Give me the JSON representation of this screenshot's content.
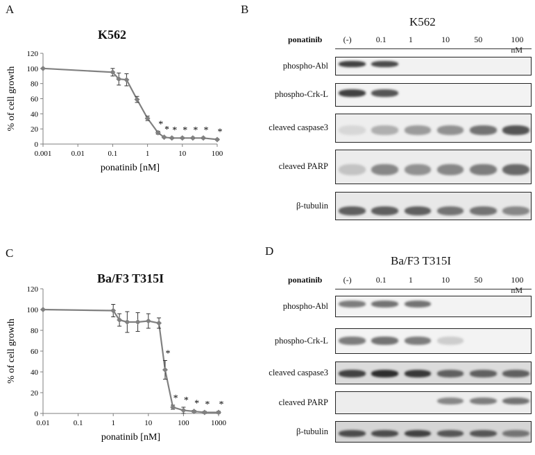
{
  "panels": {
    "A": {
      "label": "A",
      "title": "K562"
    },
    "B": {
      "label": "B",
      "title": "K562"
    },
    "C": {
      "label": "C",
      "title": "Ba/F3 T315I"
    },
    "D": {
      "label": "D",
      "title": "Ba/F3 T315I"
    }
  },
  "chart_data": [
    {
      "type": "line",
      "title": "K562",
      "xlabel": "ponatinib [nM]",
      "ylabel": "% of cell growth",
      "xscale": "log",
      "xlim": [
        0.001,
        100
      ],
      "ylim": [
        0,
        120
      ],
      "xticks": [
        "0.001",
        "0.01",
        "0.1",
        "1",
        "10",
        "100"
      ],
      "yticks": [
        "0",
        "20",
        "40",
        "60",
        "80",
        "100",
        "120"
      ],
      "grid": false,
      "color": "#808080",
      "x": [
        0.001,
        0.1,
        0.15,
        0.25,
        0.5,
        1,
        2,
        3,
        5,
        10,
        20,
        40,
        100
      ],
      "y": [
        100,
        95,
        86,
        85,
        59,
        34,
        15,
        9,
        8,
        8,
        8,
        8,
        6
      ],
      "error": [
        0,
        5,
        8,
        8,
        4,
        3,
        2,
        1,
        1,
        1,
        1,
        1,
        1
      ],
      "significant": [
        "*",
        "*",
        "*",
        "*",
        "*",
        "*",
        "*"
      ]
    },
    {
      "type": "line",
      "title": "Ba/F3 T315I",
      "xlabel": "ponatinib [nM]",
      "ylabel": "% of cell growth",
      "xscale": "log",
      "xlim": [
        0.01,
        1000
      ],
      "ylim": [
        0,
        120
      ],
      "xticks": [
        "0.01",
        "0.1",
        "1",
        "10",
        "100",
        "1000"
      ],
      "yticks": [
        "0",
        "20",
        "40",
        "60",
        "80",
        "100",
        "120"
      ],
      "grid": false,
      "color": "#808080",
      "x": [
        0.01,
        1,
        1.5,
        2.5,
        5,
        10,
        20,
        30,
        50,
        100,
        200,
        400,
        1000
      ],
      "y": [
        100,
        99,
        90,
        88,
        88,
        89,
        87,
        42,
        6,
        3,
        2,
        1,
        1
      ],
      "error": [
        0,
        6,
        6,
        10,
        9,
        7,
        5,
        9,
        2,
        3,
        1,
        1,
        1
      ],
      "significant": [
        "*",
        "*",
        "*",
        "*",
        "*",
        "*"
      ]
    }
  ],
  "blotB": {
    "header_label": "ponatinib",
    "lanes": [
      "(-)",
      "0.1",
      "1",
      "10",
      "50",
      "100 nM"
    ],
    "rows": [
      {
        "label": "phospho-Abl",
        "intensities": [
          0.85,
          0.8,
          0,
          0,
          0,
          0
        ]
      },
      {
        "label": "phospho-Crk-L",
        "intensities": [
          0.85,
          0.75,
          0,
          0,
          0,
          0
        ]
      },
      {
        "label": "cleaved caspase3",
        "intensities": [
          0.1,
          0.3,
          0.4,
          0.45,
          0.6,
          0.75
        ]
      },
      {
        "label": "cleaved PARP",
        "intensities": [
          0.2,
          0.5,
          0.45,
          0.5,
          0.55,
          0.65
        ]
      },
      {
        "label": "β-tubulin",
        "intensities": [
          0.7,
          0.7,
          0.7,
          0.6,
          0.6,
          0.5
        ]
      }
    ]
  },
  "blotD": {
    "header_label": "ponatinib",
    "lanes": [
      "(-)",
      "0.1",
      "1",
      "10",
      "50",
      "100 nM"
    ],
    "rows": [
      {
        "label": "phospho-Abl",
        "intensities": [
          0.55,
          0.6,
          0.6,
          0,
          0,
          0
        ]
      },
      {
        "label": "phospho-Crk-L",
        "intensities": [
          0.55,
          0.6,
          0.55,
          0.15,
          0,
          0
        ]
      },
      {
        "label": "cleaved caspase3",
        "intensities": [
          0.85,
          0.95,
          0.9,
          0.7,
          0.7,
          0.7
        ]
      },
      {
        "label": "cleaved PARP",
        "intensities": [
          0,
          0,
          0,
          0.5,
          0.55,
          0.6
        ]
      },
      {
        "label": "β-tubulin",
        "intensities": [
          0.8,
          0.8,
          0.85,
          0.75,
          0.75,
          0.6
        ]
      }
    ]
  }
}
